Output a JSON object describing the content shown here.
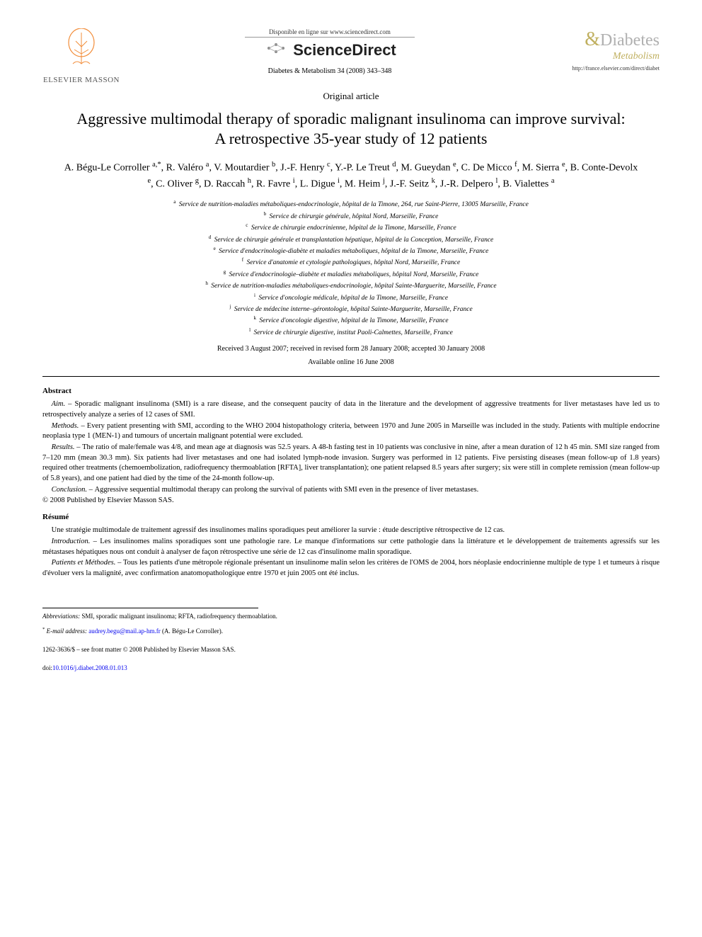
{
  "header": {
    "publisher_name": "ELSEVIER MASSON",
    "sd_tagline": "Disponible en ligne sur www.sciencedirect.com",
    "sd_logo": "ScienceDirect",
    "journal_citation": "Diabetes & Metabolism 34 (2008) 343–348",
    "journal_name_main": "Diabetes",
    "journal_name_sub": "Metabolism",
    "journal_url": "http://france.elsevier.com/direct/diabet"
  },
  "article_type": "Original article",
  "title": "Aggressive multimodal therapy of sporadic malignant insulinoma can improve survival: A retrospective 35-year study of 12 patients",
  "authors_html": "A. Bégu-Le Corroller <sup>a,*</sup>, R. Valéro <sup>a</sup>, V. Moutardier <sup>b</sup>, J.-F. Henry <sup>c</sup>, Y.-P. Le Treut <sup>d</sup>, M. Gueydan <sup>e</sup>, C. De Micco <sup>f</sup>, M. Sierra <sup>e</sup>, B. Conte-Devolx <sup>e</sup>, C. Oliver <sup>g</sup>, D. Raccah <sup>h</sup>, R. Favre <sup>i</sup>, L. Digue <sup>i</sup>, M. Heim <sup>j</sup>, J.-F. Seitz <sup>k</sup>, J.-R. Delpero <sup>l</sup>, B. Vialettes <sup>a</sup>",
  "affiliations": [
    {
      "sup": "a",
      "text": "Service de nutrition-maladies métaboliques-endocrinologie, hôpital de la Timone, 264, rue Saint-Pierre, 13005 Marseille, France"
    },
    {
      "sup": "b",
      "text": "Service de chirurgie générale, hôpital Nord, Marseille, France"
    },
    {
      "sup": "c",
      "text": "Service de chirurgie endocrinienne, hôpital de la Timone, Marseille, France"
    },
    {
      "sup": "d",
      "text": "Service de chirurgie générale et transplantation hépatique, hôpital de la Conception, Marseille, France"
    },
    {
      "sup": "e",
      "text": "Service d'endocrinologie-diabète et maladies métaboliques, hôpital de la Timone, Marseille, France"
    },
    {
      "sup": "f",
      "text": "Service d'anatomie et cytologie pathologiques, hôpital Nord, Marseille, France"
    },
    {
      "sup": "g",
      "text": "Service d'endocrinologie–diabète et maladies métaboliques, hôpital Nord, Marseille, France"
    },
    {
      "sup": "h",
      "text": "Service de nutrition-maladies métaboliques-endocrinologie, hôpital Sainte-Marguerite, Marseille, France"
    },
    {
      "sup": "i",
      "text": "Service d'oncologie médicale, hôpital de la Timone, Marseille, France"
    },
    {
      "sup": "j",
      "text": "Service de médecine interne–gérontologie, hôpital Sainte-Marguerite, Marseille, France"
    },
    {
      "sup": "k",
      "text": "Service d'oncologie digestive, hôpital de la Timone, Marseille, France"
    },
    {
      "sup": "l",
      "text": "Service de chirurgie digestive, institut Paoli-Calmettes, Marseille, France"
    }
  ],
  "dates_line1": "Received 3 August 2007; received in revised form 28 January 2008; accepted 30 January 2008",
  "dates_line2": "Available online 16 June 2008",
  "abstract_head": "Abstract",
  "abstract": {
    "aim_label": "Aim. – ",
    "aim": "Sporadic malignant insulinoma (SMI) is a rare disease, and the consequent paucity of data in the literature and the development of aggressive treatments for liver metastases have led us to retrospectively analyze a series of 12 cases of SMI.",
    "methods_label": "Methods. – ",
    "methods": "Every patient presenting with SMI, according to the WHO 2004 histopathology criteria, between 1970 and June 2005 in Marseille was included in the study. Patients with multiple endocrine neoplasia type 1 (MEN-1) and tumours of uncertain malignant potential were excluded.",
    "results_label": "Results. – ",
    "results": "The ratio of male/female was 4/8, and mean age at diagnosis was 52.5 years. A 48-h fasting test in 10 patients was conclusive in nine, after a mean duration of 12 h 45 min. SMI size ranged from 7–120 mm (mean 30.3 mm). Six patients had liver metastases and one had isolated lymph-node invasion. Surgery was performed in 12 patients. Five persisting diseases (mean follow-up of 1.8 years) required other treatments (chemoembolization, radiofrequency thermoablation [RFTA], liver transplantation); one patient relapsed 8.5 years after surgery; six were still in complete remission (mean follow-up of 5.8 years), and one patient had died by the time of the 24-month follow-up.",
    "conclusion_label": "Conclusion. – ",
    "conclusion": "Aggressive sequential multimodal therapy can prolong the survival of patients with SMI even in the presence of liver metastases."
  },
  "copyright": "© 2008 Published by Elsevier Masson SAS.",
  "resume_head": "Résumé",
  "resume": {
    "intro_fr": "Une stratégie multimodale de traitement agressif des insulinomes malins sporadiques peut améliorer la survie : étude descriptive rétrospective de 12 cas.",
    "introduction_label": "Introduction. – ",
    "introduction": "Les insulinomes malins sporadiques sont une pathologie rare. Le manque d'informations sur cette pathologie dans la littérature et le développement de traitements agressifs sur les métastases hépatiques nous ont conduit à analyser de façon rétrospective une série de 12 cas d'insulinome malin sporadique.",
    "patients_label": "Patients et Méthodes. – ",
    "patients": "Tous les patients d'une métropole régionale présentant un insulinome malin selon les critères de l'OMS de 2004, hors néoplasie endocrinienne multiple de type 1 et tumeurs à risque d'évoluer vers la malignité, avec confirmation anatomopathologique entre 1970 et juin 2005 ont été inclus."
  },
  "footer": {
    "abbrev_label": "Abbreviations:",
    "abbrev_text": " SMI, sporadic malignant insulinoma; RFTA, radiofrequency thermoablation.",
    "email_label": "E-mail address:",
    "email": "audrey.begu@mail.ap-hm.fr",
    "email_paren": " (A. Bégu-Le Corroller).",
    "front_matter": "1262-3636/$ – see front matter © 2008 Published by Elsevier Masson SAS.",
    "doi_prefix": "doi:",
    "doi": "10.1016/j.diabet.2008.01.013"
  },
  "colors": {
    "text": "#000000",
    "link": "#0000ee",
    "publisher_tree": "#f28c38",
    "journal_gray": "#b0b0b0",
    "journal_gold": "#c0b060"
  }
}
